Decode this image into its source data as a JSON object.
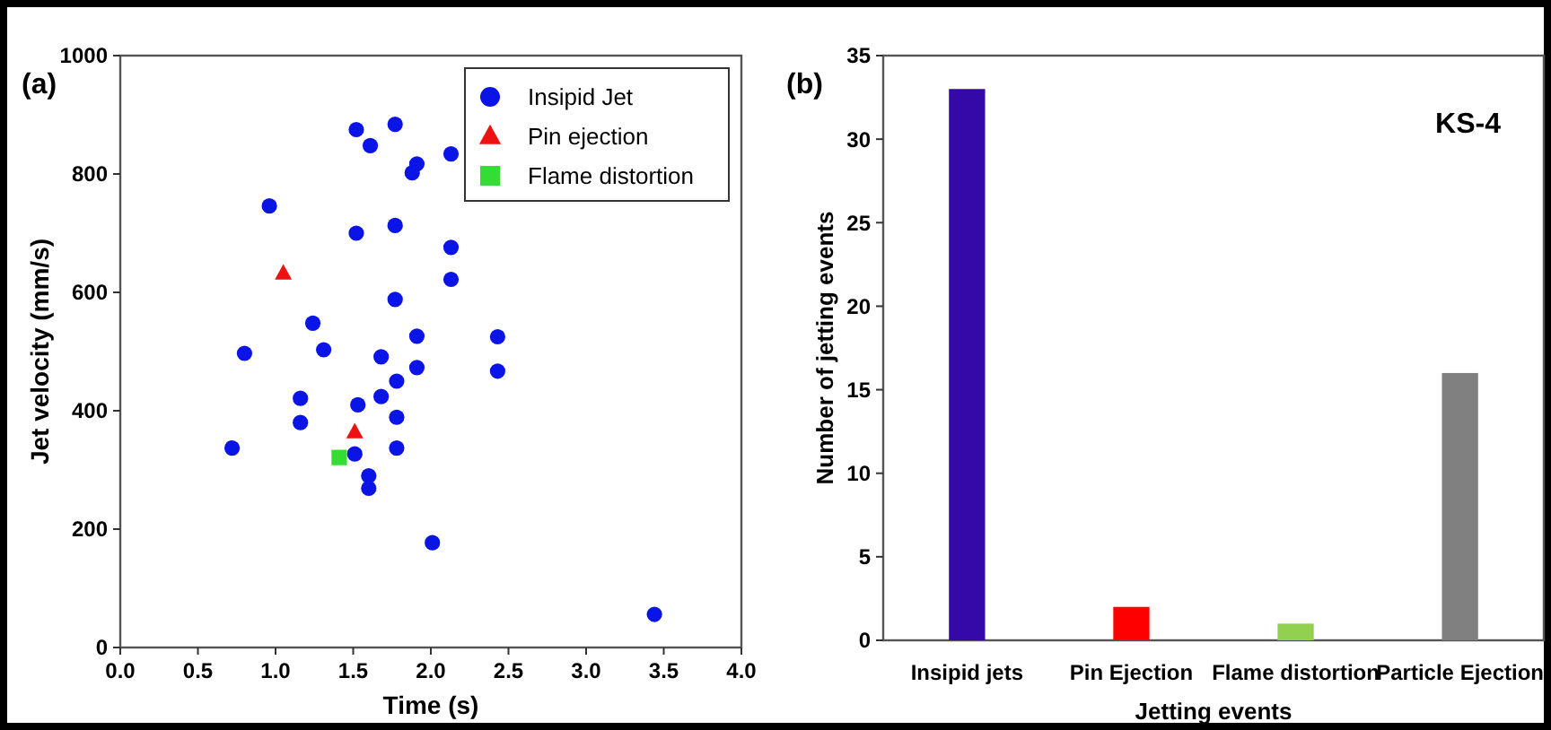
{
  "chart_data": [
    {
      "type": "scatter",
      "xlabel": "Time (s)",
      "ylabel": "Jet velocity (mm/s)",
      "annotations": [
        "(a)"
      ],
      "xlim": [
        0,
        4
      ],
      "xticks": [
        {
          "value": 0,
          "label": "0.0"
        },
        0.5,
        {
          "value": 1,
          "label": "1.0"
        },
        1.5,
        {
          "value": 2,
          "label": "2.0"
        },
        2.5,
        {
          "value": 3,
          "label": "3.0"
        },
        3.5,
        {
          "value": 4,
          "label": "4.0"
        }
      ],
      "ylim": [
        0,
        1000
      ],
      "yticks": [
        0,
        200,
        400,
        600,
        800,
        1000
      ],
      "grid": false,
      "legend": "top right",
      "series": [
        {
          "name": "Insipid Jet",
          "color": "#0a14e6",
          "marker": "circle",
          "x": [
            1.52,
            1.77,
            1.61,
            1.91,
            1.88,
            2.13,
            0.96,
            1.52,
            1.77,
            2.13,
            2.13,
            1.77,
            1.24,
            0.8,
            1.31,
            1.91,
            2.43,
            1.68,
            1.91,
            2.43,
            1.78,
            1.68,
            1.16,
            1.53,
            1.78,
            1.16,
            0.72,
            1.78,
            1.51,
            1.6,
            1.6,
            2.01,
            3.44
          ],
          "values": [
            875,
            884,
            848,
            817,
            802,
            834,
            746,
            700,
            713,
            676,
            622,
            588,
            548,
            497,
            503,
            526,
            525,
            491,
            473,
            467,
            450,
            424,
            421,
            410,
            389,
            380,
            337,
            337,
            327,
            290,
            269,
            177,
            56
          ]
        },
        {
          "name": "Pin ejection",
          "color": "#ee1111",
          "marker": "triangle",
          "x": [
            1.05,
            1.51
          ],
          "values": [
            632,
            364
          ]
        },
        {
          "name": "Flame distortion",
          "color": "#33dd33",
          "marker": "square",
          "x": [
            1.41
          ],
          "values": [
            321
          ]
        }
      ]
    },
    {
      "type": "bar",
      "xlabel": "Jetting events",
      "ylabel": "Number of jetting events",
      "annotations": [
        "(b)",
        "KS-4"
      ],
      "categories": [
        "Insipid jets",
        "Pin Ejection",
        "Flame distortion",
        "Particle Ejection"
      ],
      "values": [
        33,
        2,
        1,
        16
      ],
      "colors": [
        "#3508a8",
        "#ff0000",
        "#92d050",
        "#808080"
      ],
      "ylim": [
        0,
        35
      ],
      "yticks": [
        0,
        5,
        10,
        15,
        20,
        25,
        30,
        35
      ],
      "grid": false
    }
  ]
}
